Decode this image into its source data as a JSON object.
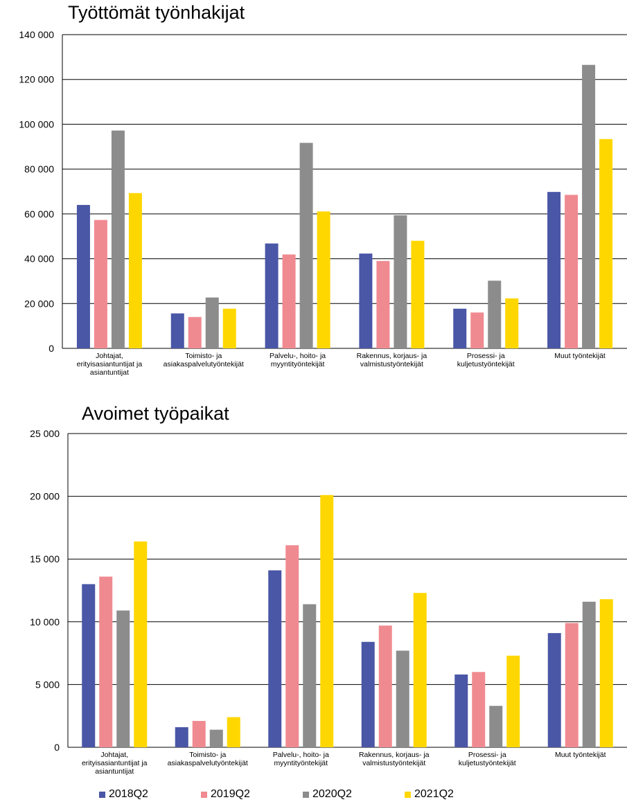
{
  "colors": {
    "2018Q2": "#4a56a6",
    "2019Q2": "#f08a91",
    "2020Q2": "#8c8c8c",
    "2021Q2": "#ffd700"
  },
  "legend": [
    "2018Q2",
    "2019Q2",
    "2020Q2",
    "2021Q2"
  ],
  "chart_data": [
    {
      "type": "bar",
      "title": "Työttömät työnhakijat",
      "categories": [
        [
          "Johtajat,",
          "erityisasiantuntijat ja",
          "asiantuntijat"
        ],
        [
          "Toimisto- ja",
          "asiakaspalvelutyöntekijät"
        ],
        [
          "Palvelu-, hoito- ja",
          "myyntityöntekijät"
        ],
        [
          "Rakennus, korjaus- ja",
          "valmistustyöntekijät"
        ],
        [
          "Prosessi- ja",
          "kuljetustyöntekijät"
        ],
        [
          "Muut työntekijät"
        ]
      ],
      "series": [
        {
          "name": "2018Q2",
          "values": [
            64000,
            15600,
            46800,
            42300,
            17700,
            69800
          ]
        },
        {
          "name": "2019Q2",
          "values": [
            57300,
            14000,
            41900,
            39000,
            16000,
            68500
          ]
        },
        {
          "name": "2020Q2",
          "values": [
            97200,
            22700,
            91700,
            59400,
            30200,
            126500
          ]
        },
        {
          "name": "2021Q2",
          "values": [
            69300,
            17700,
            61100,
            48000,
            22300,
            93400
          ]
        }
      ],
      "ylim": [
        0,
        140000
      ],
      "yticks": [
        0,
        20000,
        40000,
        60000,
        80000,
        100000,
        120000,
        140000
      ],
      "ytick_labels": [
        "0",
        "20 000",
        "40 000",
        "60 000",
        "80 000",
        "100 000",
        "120 000",
        "140 000"
      ],
      "grid": true
    },
    {
      "type": "bar",
      "title": "Avoimet työpaikat",
      "categories": [
        [
          "Johtajat,",
          "erityisasiantuntijat ja",
          "asiantuntijat"
        ],
        [
          "Toimisto- ja",
          "asiakaspalvelutyöntekijät"
        ],
        [
          "Palvelu-, hoito- ja",
          "myyntityöntekijät"
        ],
        [
          "Rakennus, korjaus- ja",
          "valmistustyöntekijät"
        ],
        [
          "Prosessi- ja",
          "kuljetustyöntekijät"
        ],
        [
          "Muut työntekijät"
        ]
      ],
      "series": [
        {
          "name": "2018Q2",
          "values": [
            13000,
            1600,
            14100,
            8400,
            5800,
            9100
          ]
        },
        {
          "name": "2019Q2",
          "values": [
            13600,
            2100,
            16100,
            9700,
            6000,
            9900
          ]
        },
        {
          "name": "2020Q2",
          "values": [
            10900,
            1400,
            11400,
            7700,
            3300,
            11600
          ]
        },
        {
          "name": "2021Q2",
          "values": [
            16400,
            2400,
            20100,
            12300,
            7300,
            11800
          ]
        }
      ],
      "ylim": [
        0,
        25000
      ],
      "yticks": [
        0,
        5000,
        10000,
        15000,
        20000,
        25000
      ],
      "ytick_labels": [
        "0",
        "5 000",
        "10 000",
        "15 000",
        "20 000",
        "25 000"
      ],
      "grid": true
    }
  ]
}
